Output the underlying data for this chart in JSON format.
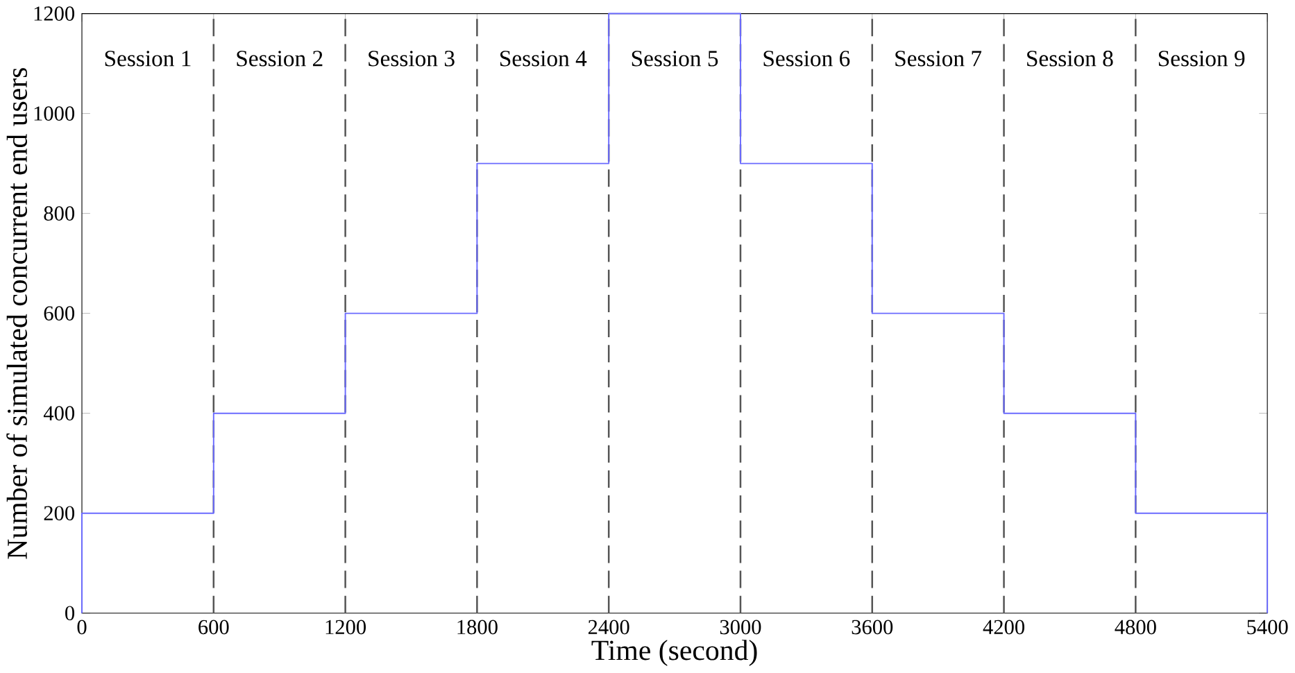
{
  "chart_data": {
    "type": "step",
    "xlabel": "Time (second)",
    "ylabel": "Number of simulated concurrent end users",
    "x": [
      0,
      0,
      600,
      1200,
      1800,
      2400,
      3000,
      3600,
      4200,
      4800,
      5400
    ],
    "values": [
      0,
      200,
      400,
      600,
      900,
      1200,
      900,
      600,
      400,
      200,
      0
    ],
    "color": "#6b6bff",
    "xlim": [
      0,
      5400
    ],
    "ylim": [
      0,
      1200
    ],
    "xticks": [
      0,
      600,
      1200,
      1800,
      2400,
      3000,
      3600,
      4200,
      4800,
      5400
    ],
    "yticks": [
      0,
      200,
      400,
      600,
      800,
      1000,
      1200
    ],
    "ref_lines": [
      {
        "axis": "x",
        "value": 600,
        "color": "#555555",
        "line_style": "dashed"
      },
      {
        "axis": "x",
        "value": 1200,
        "color": "#555555",
        "line_style": "dashed"
      },
      {
        "axis": "x",
        "value": 1800,
        "color": "#555555",
        "line_style": "dashed"
      },
      {
        "axis": "x",
        "value": 2400,
        "color": "#555555",
        "line_style": "dashed"
      },
      {
        "axis": "x",
        "value": 3000,
        "color": "#555555",
        "line_style": "dashed"
      },
      {
        "axis": "x",
        "value": 3600,
        "color": "#555555",
        "line_style": "dashed"
      },
      {
        "axis": "x",
        "value": 4200,
        "color": "#555555",
        "line_style": "dashed"
      },
      {
        "axis": "x",
        "value": 4800,
        "color": "#555555",
        "line_style": "dashed"
      }
    ],
    "annotations": [
      "Session 1",
      "Session 2",
      "Session 3",
      "Session 4",
      "Session 5",
      "Session 6",
      "Session 7",
      "Session 8",
      "Session 9"
    ],
    "grid": false
  }
}
